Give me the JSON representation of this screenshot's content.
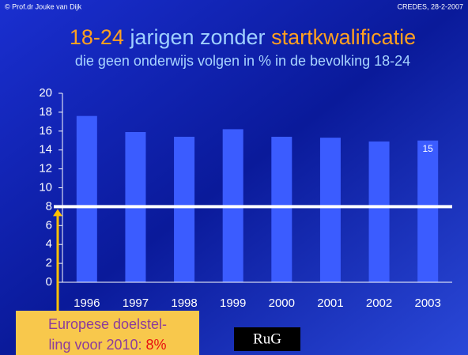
{
  "header": {
    "left": "© Prof.dr Jouke van Dijk",
    "right": "CREDES, 28-2-2007"
  },
  "chart_data": {
    "type": "bar",
    "title": {
      "part1": "18-24",
      "part2": "jarigen zonder",
      "part3": "startkwalificatie"
    },
    "subtitle": "die geen onderwijs volgen in % in de bevolking 18-24",
    "categories": [
      "1996",
      "1997",
      "1998",
      "1999",
      "2000",
      "2001",
      "2002",
      "2003"
    ],
    "values": [
      17.6,
      15.9,
      15.4,
      16.2,
      15.4,
      15.3,
      14.9,
      15
    ],
    "value_labels": [
      null,
      null,
      null,
      null,
      null,
      null,
      null,
      "15"
    ],
    "color": "#3b5cff",
    "ylim": [
      0,
      20
    ],
    "yticks": [
      0,
      2,
      4,
      6,
      8,
      10,
      12,
      14,
      16,
      18,
      20
    ],
    "target": 8,
    "annotation": {
      "lines": [
        "Europese doelstel-",
        "ling voor 2010:"
      ],
      "value_label": "8%"
    }
  },
  "logo": "RuG"
}
